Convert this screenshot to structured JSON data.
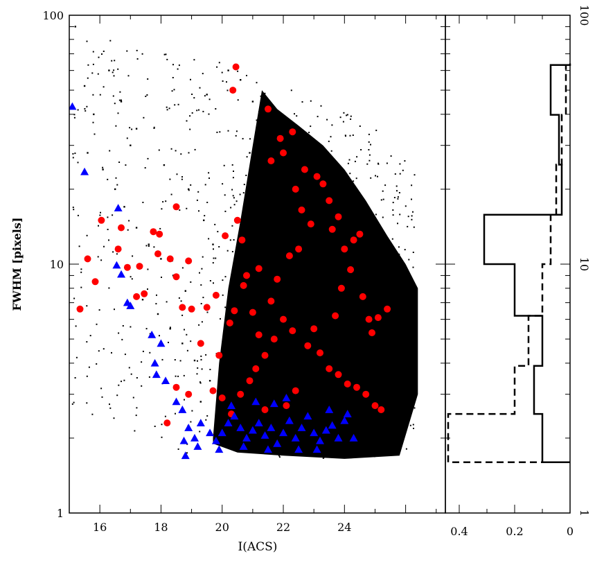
{
  "chart_data": [
    {
      "type": "scatter",
      "title": "",
      "xlabel": "I(ACS)",
      "ylabel": "FWHM [pixels]",
      "xlim": [
        15,
        27.3
      ],
      "ylim": [
        1,
        100
      ],
      "yscale": "log",
      "grid": false,
      "legend": "none",
      "x_ticks": [
        "16",
        "18",
        "20",
        "22",
        "24"
      ],
      "y_ticks": [
        "1",
        "10",
        "100"
      ],
      "series": [
        {
          "marker": "dot",
          "color": "#000000",
          "density_note_points": [],
          "points": [
            [
              15.2,
              90
            ],
            [
              15.5,
              52
            ],
            [
              15.8,
              40
            ],
            [
              16.3,
              60
            ],
            [
              16.7,
              45
            ],
            [
              17.0,
              30
            ],
            [
              15.6,
              28
            ],
            [
              16.1,
              24
            ],
            [
              16.5,
              20
            ],
            [
              16.8,
              17
            ],
            [
              17.2,
              14
            ],
            [
              17.6,
              12
            ],
            [
              18.0,
              10.5
            ],
            [
              18.4,
              9
            ],
            [
              18.8,
              7.8
            ],
            [
              17.4,
              7.2
            ],
            [
              17.9,
              6.3
            ],
            [
              18.3,
              5.5
            ],
            [
              18.7,
              4.8
            ],
            [
              19.1,
              4.1
            ],
            [
              19.6,
              3.4
            ],
            [
              19.9,
              2.9
            ],
            [
              18.5,
              3.2
            ],
            [
              19.3,
              2.8
            ],
            [
              17.2,
              35
            ],
            [
              18.1,
              25
            ],
            [
              18.9,
              20
            ],
            [
              19.4,
              15
            ],
            [
              19.7,
              12
            ],
            [
              20.2,
              60
            ],
            [
              19.5,
              48
            ],
            [
              20.6,
              55
            ],
            [
              21.0,
              45
            ],
            [
              21.4,
              38
            ],
            [
              20.9,
              28
            ],
            [
              21.3,
              22
            ]
          ]
        },
        {
          "name": "",
          "marker": "circle",
          "color": "#ff0000",
          "points": [
            [
              15.35,
              6.6
            ],
            [
              15.6,
              10.5
            ],
            [
              15.85,
              8.5
            ],
            [
              16.05,
              15.0
            ],
            [
              16.6,
              11.5
            ],
            [
              16.7,
              14.0
            ],
            [
              16.9,
              9.7
            ],
            [
              17.2,
              7.4
            ],
            [
              17.3,
              9.8
            ],
            [
              17.45,
              7.6
            ],
            [
              17.75,
              13.5
            ],
            [
              17.9,
              11.0
            ],
            [
              17.95,
              13.2
            ],
            [
              18.3,
              10.5
            ],
            [
              18.5,
              17.0
            ],
            [
              18.5,
              8.9
            ],
            [
              18.7,
              6.7
            ],
            [
              18.9,
              10.3
            ],
            [
              19.0,
              6.6
            ],
            [
              19.3,
              4.8
            ],
            [
              19.5,
              6.7
            ],
            [
              19.8,
              7.5
            ],
            [
              20.1,
              13.0
            ],
            [
              20.25,
              5.8
            ],
            [
              20.4,
              6.5
            ],
            [
              20.45,
              62.0
            ],
            [
              20.35,
              50.0
            ],
            [
              20.5,
              15.0
            ],
            [
              20.65,
              12.5
            ],
            [
              20.8,
              9.0
            ],
            [
              21.0,
              6.4
            ],
            [
              21.2,
              5.2
            ],
            [
              21.4,
              4.3
            ],
            [
              21.5,
              42.0
            ],
            [
              21.6,
              26.0
            ],
            [
              21.9,
              32.0
            ],
            [
              22.0,
              28.0
            ],
            [
              22.3,
              34.0
            ],
            [
              22.4,
              20.0
            ],
            [
              22.7,
              24.0
            ],
            [
              23.1,
              22.5
            ],
            [
              23.3,
              21.0
            ],
            [
              23.5,
              18.0
            ],
            [
              22.6,
              16.5
            ],
            [
              22.9,
              14.5
            ],
            [
              23.6,
              13.8
            ],
            [
              23.8,
              15.5
            ],
            [
              24.0,
              11.5
            ],
            [
              24.3,
              12.5
            ],
            [
              24.5,
              13.2
            ],
            [
              24.2,
              9.5
            ],
            [
              23.9,
              8.0
            ],
            [
              24.6,
              7.4
            ],
            [
              24.8,
              6.0
            ],
            [
              25.1,
              6.1
            ],
            [
              25.4,
              6.6
            ],
            [
              22.2,
              10.8
            ],
            [
              22.5,
              11.5
            ],
            [
              21.8,
              8.7
            ],
            [
              21.6,
              7.1
            ],
            [
              22.0,
              6.0
            ],
            [
              22.3,
              5.4
            ],
            [
              22.8,
              4.7
            ],
            [
              23.2,
              4.4
            ],
            [
              23.5,
              3.8
            ],
            [
              23.8,
              3.6
            ],
            [
              24.1,
              3.3
            ],
            [
              24.4,
              3.2
            ],
            [
              24.7,
              3.0
            ],
            [
              25.0,
              2.7
            ],
            [
              25.2,
              2.6
            ],
            [
              21.1,
              3.8
            ],
            [
              20.9,
              3.4
            ],
            [
              20.6,
              3.0
            ],
            [
              20.0,
              2.9
            ],
            [
              19.7,
              3.1
            ],
            [
              18.9,
              3.0
            ],
            [
              18.5,
              3.2
            ],
            [
              18.2,
              2.3
            ],
            [
              22.4,
              3.1
            ],
            [
              22.1,
              2.7
            ],
            [
              21.4,
              2.6
            ],
            [
              20.3,
              2.5
            ],
            [
              19.9,
              4.3
            ],
            [
              21.7,
              5.0
            ],
            [
              23.0,
              5.5
            ],
            [
              23.7,
              6.2
            ],
            [
              24.9,
              5.3
            ],
            [
              20.7,
              8.2
            ],
            [
              21.2,
              9.6
            ]
          ]
        },
        {
          "name": "",
          "marker": "triangle",
          "color": "#0000ff",
          "points": [
            [
              15.1,
              43.0
            ],
            [
              15.5,
              23.5
            ],
            [
              16.6,
              16.8
            ],
            [
              16.55,
              9.9
            ],
            [
              16.7,
              9.1
            ],
            [
              16.9,
              7.0
            ],
            [
              17.0,
              6.8
            ],
            [
              17.7,
              5.2
            ],
            [
              18.0,
              4.8
            ],
            [
              17.8,
              4.0
            ],
            [
              17.85,
              3.6
            ],
            [
              18.15,
              3.4
            ],
            [
              18.5,
              2.8
            ],
            [
              18.7,
              2.6
            ],
            [
              18.9,
              2.2
            ],
            [
              19.1,
              2.0
            ],
            [
              19.3,
              2.3
            ],
            [
              19.6,
              2.1
            ],
            [
              19.8,
              1.95
            ],
            [
              20.0,
              2.1
            ],
            [
              20.2,
              2.3
            ],
            [
              20.4,
              2.45
            ],
            [
              20.6,
              2.2
            ],
            [
              20.8,
              2.0
            ],
            [
              21.0,
              2.15
            ],
            [
              21.2,
              2.3
            ],
            [
              21.4,
              2.05
            ],
            [
              21.6,
              2.2
            ],
            [
              21.8,
              1.9
            ],
            [
              22.0,
              2.1
            ],
            [
              22.2,
              2.35
            ],
            [
              22.4,
              2.0
            ],
            [
              22.6,
              2.2
            ],
            [
              22.8,
              2.45
            ],
            [
              23.0,
              2.1
            ],
            [
              23.2,
              1.95
            ],
            [
              23.4,
              2.15
            ],
            [
              23.6,
              2.25
            ],
            [
              23.8,
              2.0
            ],
            [
              24.0,
              2.35
            ],
            [
              24.3,
              2.0
            ],
            [
              19.2,
              1.85
            ],
            [
              19.9,
              1.8
            ],
            [
              20.7,
              1.85
            ],
            [
              21.5,
              1.8
            ],
            [
              22.5,
              1.8
            ],
            [
              23.1,
              1.8
            ],
            [
              18.8,
              1.7
            ],
            [
              18.75,
              1.95
            ],
            [
              20.3,
              2.7
            ],
            [
              21.1,
              2.8
            ],
            [
              21.7,
              2.75
            ],
            [
              22.1,
              2.9
            ],
            [
              23.5,
              2.6
            ],
            [
              24.1,
              2.5
            ]
          ]
        }
      ],
      "density_region": [
        [
          19.7,
          2.0
        ],
        [
          19.9,
          4.0
        ],
        [
          20.2,
          8.0
        ],
        [
          20.6,
          15.0
        ],
        [
          21.0,
          30.0
        ],
        [
          21.3,
          50.0
        ],
        [
          21.8,
          42.0
        ],
        [
          22.5,
          36.0
        ],
        [
          23.3,
          30.0
        ],
        [
          24.0,
          24.0
        ],
        [
          24.7,
          18.0
        ],
        [
          25.4,
          13.0
        ],
        [
          26.0,
          10.0
        ],
        [
          26.4,
          8.0
        ],
        [
          26.4,
          3.0
        ],
        [
          25.8,
          1.7
        ],
        [
          24.0,
          1.65
        ],
        [
          22.0,
          1.7
        ],
        [
          20.5,
          1.75
        ],
        [
          19.7,
          1.9
        ]
      ]
    },
    {
      "type": "histogram",
      "title": "",
      "xlim": [
        0.45,
        0
      ],
      "ylim": [
        1,
        100
      ],
      "yscale": "log",
      "x_ticks": [
        "0.4",
        "0.2",
        "0"
      ],
      "y_ticks": [
        "1",
        "10",
        "100"
      ],
      "grid": false,
      "series": [
        {
          "name": "",
          "style": "solid",
          "bins": [
            {
              "lo": 1.6,
              "hi": 2.5,
              "value": 0.1
            },
            {
              "lo": 2.5,
              "hi": 3.9,
              "value": 0.13
            },
            {
              "lo": 3.9,
              "hi": 6.2,
              "value": 0.1
            },
            {
              "lo": 6.2,
              "hi": 10.0,
              "value": 0.2
            },
            {
              "lo": 10.0,
              "hi": 15.8,
              "value": 0.31
            },
            {
              "lo": 15.8,
              "hi": 25.1,
              "value": 0.03
            },
            {
              "lo": 25.1,
              "hi": 39.8,
              "value": 0.04
            },
            {
              "lo": 39.8,
              "hi": 63.1,
              "value": 0.07
            },
            {
              "lo": 63.1,
              "hi": 64.0,
              "value": 0.0
            }
          ]
        },
        {
          "name": "",
          "style": "dashed",
          "bins": [
            {
              "lo": 1.6,
              "hi": 2.5,
              "value": 0.44
            },
            {
              "lo": 2.5,
              "hi": 3.9,
              "value": 0.2
            },
            {
              "lo": 3.9,
              "hi": 6.2,
              "value": 0.15
            },
            {
              "lo": 6.2,
              "hi": 10.0,
              "value": 0.1
            },
            {
              "lo": 10.0,
              "hi": 15.8,
              "value": 0.07
            },
            {
              "lo": 15.8,
              "hi": 25.1,
              "value": 0.05
            },
            {
              "lo": 25.1,
              "hi": 39.8,
              "value": 0.03
            },
            {
              "lo": 39.8,
              "hi": 63.1,
              "value": 0.015
            }
          ]
        }
      ]
    }
  ]
}
